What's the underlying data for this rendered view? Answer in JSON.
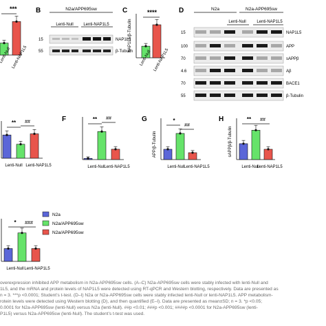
{
  "colors": {
    "n2a": "#5b66d8",
    "lenti_null": "#66e36a",
    "lenti_nap1l5": "#e8554c",
    "axis": "#111111",
    "caption": "#6a6a6a"
  },
  "panels": {
    "A": {
      "stars": "***"
    },
    "B": {
      "letter": "B",
      "cell_label": "N2a/APP695sw",
      "groups": [
        "Lenti-Null",
        "Lenti-NAP1L5"
      ],
      "mw": [
        "15",
        "55"
      ],
      "bands": [
        "NAP1L5",
        "β-Tubulin"
      ]
    },
    "C": {
      "letter": "C",
      "stars": "****"
    },
    "D": {
      "letter": "D",
      "cell_labels": [
        "N2a",
        "N2a-APP695sw"
      ],
      "groups": [
        "Lenti-Null",
        "Lenti-NAP1L5"
      ],
      "mw": [
        "15",
        "100",
        "70",
        "4.6",
        "70",
        "55"
      ],
      "bands": [
        "NAP1L5",
        "APP",
        "sAPPβ",
        "Aβ",
        "BACE1",
        "β-Tubulin"
      ]
    },
    "E": {
      "stars": [
        "**",
        "##"
      ],
      "xlabels": [
        "Lenti-Null",
        "Lenti-NAP1L5"
      ]
    },
    "F": {
      "letter": "F",
      "stars": [
        "**",
        "##"
      ]
    },
    "G": {
      "letter": "G",
      "stars": [
        "*",
        "##"
      ]
    },
    "H": {
      "letter": "H",
      "stars": [
        "**",
        "##"
      ]
    },
    "I": {
      "stars": [
        "*",
        "###"
      ]
    }
  },
  "legend": {
    "items": [
      "N2a",
      "N2a/APP695sw",
      "N2a/APP695sw"
    ]
  },
  "chart_data": [
    {
      "panel": "A",
      "type": "bar",
      "categories": [
        "Lenti-Null",
        "Lenti-NAP1L5"
      ],
      "values": [
        1.0,
        2.8
      ],
      "ylabel": "",
      "ylim": [
        0,
        3.8
      ]
    },
    {
      "panel": "C",
      "type": "bar",
      "categories": [
        "Lenti-Null",
        "Lenti-NAP1L5"
      ],
      "values": [
        1.0,
        2.85
      ],
      "ylabel": "NAP1L5/β-Tubulin",
      "ylim": [
        0,
        3.8
      ]
    },
    {
      "panel": "E",
      "type": "bar",
      "categories": [
        "",
        "Lenti-Null",
        "Lenti-NAP1L5"
      ],
      "values": [
        1.0,
        0.6,
        1.05
      ],
      "ylabel": "",
      "ylim": [
        0,
        1.6
      ]
    },
    {
      "panel": "F",
      "type": "bar",
      "categories": [
        "",
        "Lenti-Null",
        "Lenti-NAP1L5"
      ],
      "values": [
        1.0,
        23.0,
        8.5
      ],
      "ylabel": "APP/β-Tubulin",
      "ylim": [
        0,
        35
      ]
    },
    {
      "panel": "G",
      "type": "bar",
      "categories": [
        "",
        "Lenti-Null",
        "Lenti-NAP1L5"
      ],
      "values": [
        0.75,
        1.9,
        0.5
      ],
      "ylabel": "sAPPβ/β-Tubulin",
      "ylim": [
        0,
        3.0
      ]
    },
    {
      "panel": "H",
      "type": "bar",
      "categories": [
        "",
        "Lenti-Null",
        "Lenti-NAP1L5"
      ],
      "values": [
        1.0,
        1.85,
        0.65
      ],
      "ylabel": "Aβ/β-Tubulin",
      "ylim": [
        0,
        2.6
      ]
    },
    {
      "panel": "I",
      "type": "bar",
      "categories": [
        "",
        "Lenti-Null",
        "Lenti-NAP1L5"
      ],
      "values": [
        0.9,
        2.0,
        0.9
      ],
      "ylabel": "",
      "ylim": [
        0,
        3.0
      ]
    }
  ],
  "caption": {
    "lines": [
      "overexpression inhibited APP metabolism in N2a-APP695sw cells. (A–C) N2a-APP695sw cells were stably infected with lenti-Null and",
      "1L5, and the mRNA and protein levels of NAP1L5 were detected using RT-qPCR and Western blotting, respectively. Data are presented as",
      "n = 3. ***p <0.0001; Student’s t-test. (D–I) N2a or N2a-APP695sw cells were stably infected lenti-Null or lenti-NAP1L5. APP metabolism-",
      "rotein levels were detected using Western blotting (D), and then quantified (E–I). Data are presented as mean±SD; n = 3. *p <0.05;",
      "0.0001 for N2a-APP695sw (lenti-Null) versus N2a (lenti-Null). ##p <0.01; ###p <0.001; ####p <0.0001 for N2a-APP695sw (lenti-",
      "P1L5) versus N2a-APP695sw (lenti-Null). The student’s t-test was used."
    ]
  }
}
